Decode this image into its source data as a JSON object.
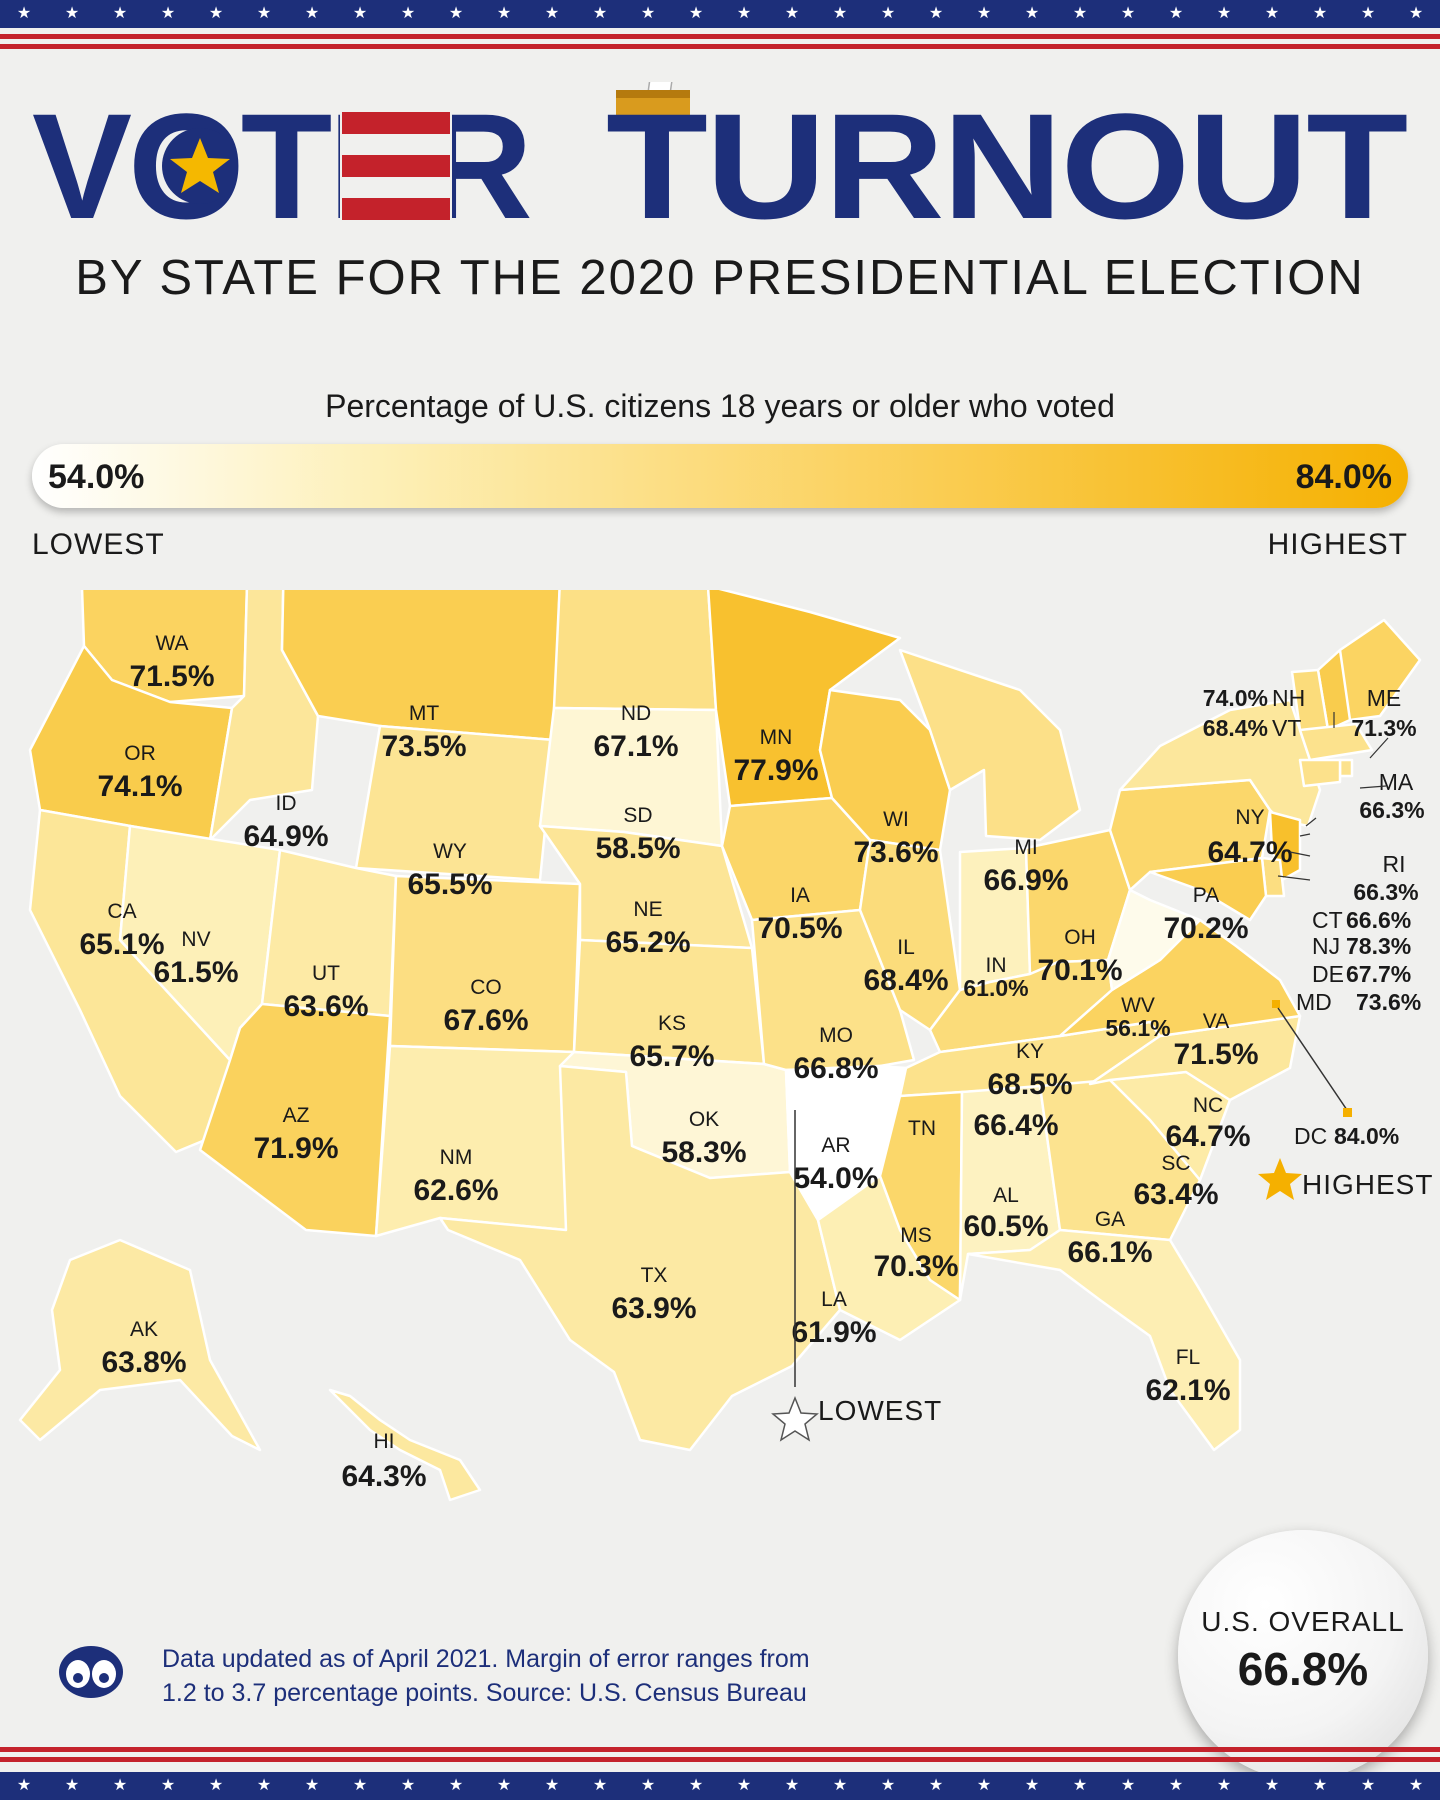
{
  "title": {
    "word1": "VOTER",
    "word2": "TURNOUT"
  },
  "subtitle": "BY STATE FOR THE 2020 PRESIDENTIAL ELECTION",
  "legend": {
    "caption": "Percentage of U.S. citizens 18 years or older who voted",
    "min_value": "54.0%",
    "max_value": "84.0%",
    "min_label": "LOWEST",
    "max_label": "HIGHEST",
    "min_color": "#ffffff",
    "max_color": "#f5b000",
    "range": [
      54.0,
      84.0
    ]
  },
  "states": [
    {
      "abbr": "WA",
      "value": 71.5,
      "label": "71.5%"
    },
    {
      "abbr": "OR",
      "value": 74.1,
      "label": "74.1%"
    },
    {
      "abbr": "CA",
      "value": 65.1,
      "label": "65.1%"
    },
    {
      "abbr": "ID",
      "value": 64.9,
      "label": "64.9%"
    },
    {
      "abbr": "NV",
      "value": 61.5,
      "label": "61.5%"
    },
    {
      "abbr": "MT",
      "value": 73.5,
      "label": "73.5%"
    },
    {
      "abbr": "WY",
      "value": 65.5,
      "label": "65.5%"
    },
    {
      "abbr": "UT",
      "value": 63.6,
      "label": "63.6%"
    },
    {
      "abbr": "AZ",
      "value": 71.9,
      "label": "71.9%"
    },
    {
      "abbr": "CO",
      "value": 67.6,
      "label": "67.6%"
    },
    {
      "abbr": "NM",
      "value": 62.6,
      "label": "62.6%"
    },
    {
      "abbr": "ND",
      "value": 67.1,
      "label": "67.1%"
    },
    {
      "abbr": "SD",
      "value": 58.5,
      "label": "58.5%"
    },
    {
      "abbr": "NE",
      "value": 65.2,
      "label": "65.2%"
    },
    {
      "abbr": "KS",
      "value": 65.7,
      "label": "65.7%"
    },
    {
      "abbr": "OK",
      "value": 58.3,
      "label": "58.3%"
    },
    {
      "abbr": "TX",
      "value": 63.9,
      "label": "63.9%"
    },
    {
      "abbr": "MN",
      "value": 77.9,
      "label": "77.9%"
    },
    {
      "abbr": "IA",
      "value": 70.5,
      "label": "70.5%"
    },
    {
      "abbr": "MO",
      "value": 66.8,
      "label": "66.8%"
    },
    {
      "abbr": "AR",
      "value": 54.0,
      "label": "54.0%"
    },
    {
      "abbr": "LA",
      "value": 61.9,
      "label": "61.9%"
    },
    {
      "abbr": "WI",
      "value": 73.6,
      "label": "73.6%"
    },
    {
      "abbr": "IL",
      "value": 68.4,
      "label": "68.4%"
    },
    {
      "abbr": "MI",
      "value": 66.9,
      "label": "66.9%"
    },
    {
      "abbr": "IN",
      "value": 61.0,
      "label": "61.0%"
    },
    {
      "abbr": "OH",
      "value": 70.1,
      "label": "70.1%"
    },
    {
      "abbr": "KY",
      "value": 68.5,
      "label": "68.5%"
    },
    {
      "abbr": "TN",
      "value": 66.4,
      "label": "66.4%"
    },
    {
      "abbr": "MS",
      "value": 70.3,
      "label": "70.3%"
    },
    {
      "abbr": "AL",
      "value": 60.5,
      "label": "60.5%"
    },
    {
      "abbr": "GA",
      "value": 66.1,
      "label": "66.1%"
    },
    {
      "abbr": "FL",
      "value": 62.1,
      "label": "62.1%"
    },
    {
      "abbr": "SC",
      "value": 63.4,
      "label": "63.4%"
    },
    {
      "abbr": "NC",
      "value": 64.7,
      "label": "64.7%"
    },
    {
      "abbr": "VA",
      "value": 71.5,
      "label": "71.5%"
    },
    {
      "abbr": "WV",
      "value": 56.1,
      "label": "56.1%"
    },
    {
      "abbr": "PA",
      "value": 70.2,
      "label": "70.2%"
    },
    {
      "abbr": "NY",
      "value": 64.7,
      "label": "64.7%"
    },
    {
      "abbr": "ME",
      "value": 71.3,
      "label": "71.3%"
    },
    {
      "abbr": "NH",
      "value": 74.0,
      "label": "74.0%"
    },
    {
      "abbr": "VT",
      "value": 68.4,
      "label": "68.4%"
    },
    {
      "abbr": "MA",
      "value": 66.3,
      "label": "66.3%"
    },
    {
      "abbr": "RI",
      "value": 66.3,
      "label": "66.3%"
    },
    {
      "abbr": "CT",
      "value": 66.6,
      "label": "66.6%"
    },
    {
      "abbr": "NJ",
      "value": 78.3,
      "label": "78.3%"
    },
    {
      "abbr": "DE",
      "value": 67.7,
      "label": "67.7%"
    },
    {
      "abbr": "MD",
      "value": 73.6,
      "label": "73.6%"
    },
    {
      "abbr": "DC",
      "value": 84.0,
      "label": "84.0%"
    },
    {
      "abbr": "AK",
      "value": 63.8,
      "label": "63.8%"
    },
    {
      "abbr": "HI",
      "value": 64.3,
      "label": "64.3%"
    }
  ],
  "markers": {
    "highest": "HIGHEST",
    "lowest": "LOWEST"
  },
  "overall": {
    "label": "U.S. OVERALL",
    "value": "66.8%"
  },
  "footnote": {
    "line1": "Data updated as of April 2021. Margin of error ranges from",
    "line2": "1.2 to 3.7 percentage points. Source: U.S. Census Bureau"
  },
  "colors": {
    "navy": "#1d2f7a",
    "red": "#c4222b",
    "gold": "#f5b000",
    "background": "#f0f0ee"
  }
}
